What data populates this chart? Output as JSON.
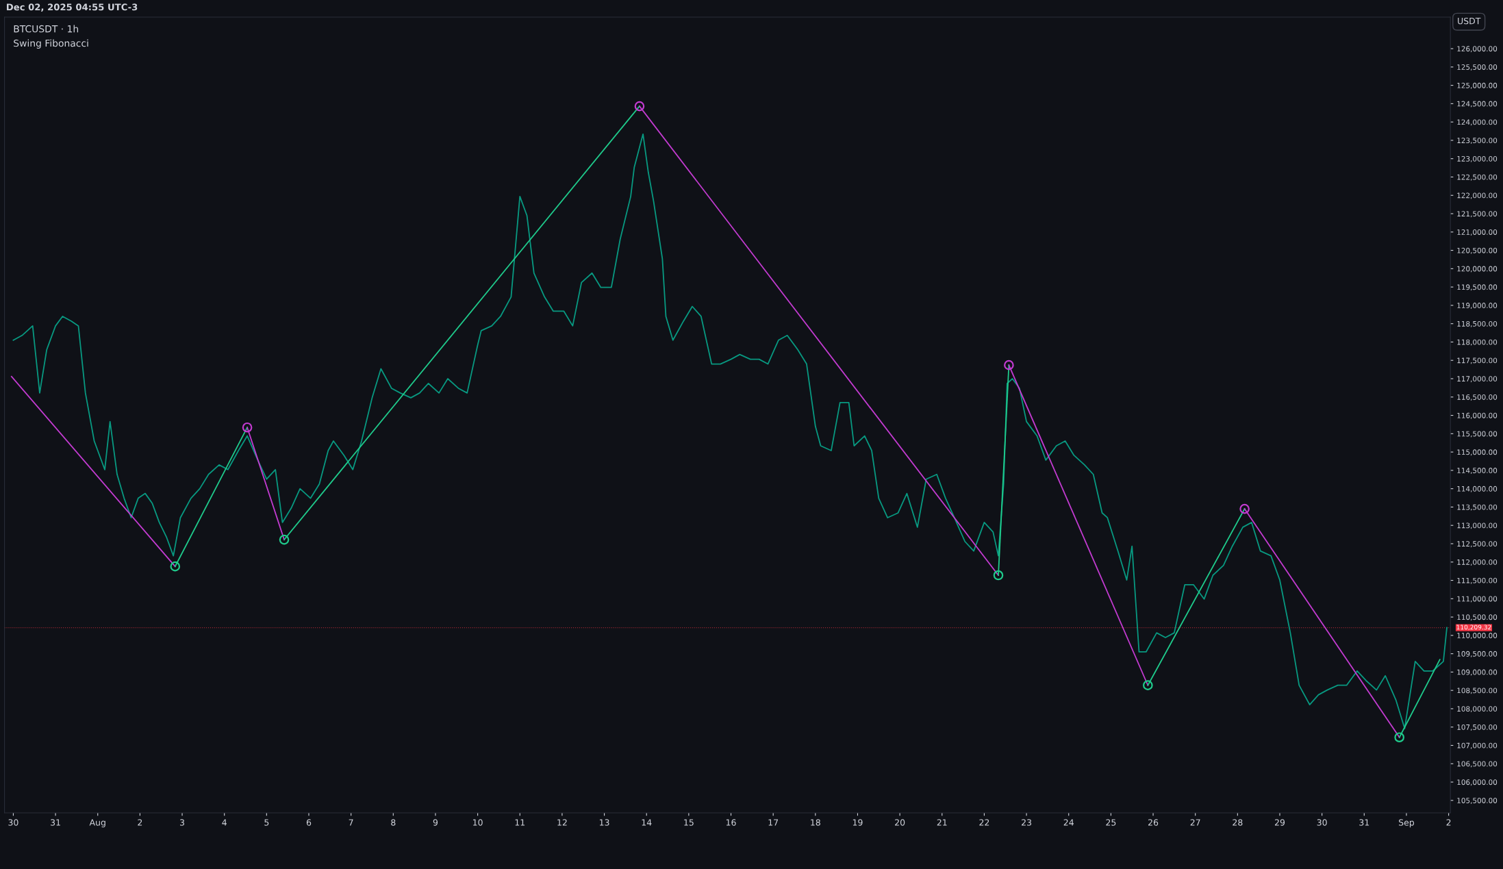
{
  "chart_data": {
    "type": "line",
    "title": "BTCUSDT · 1h",
    "subtitle": "Swing Fibonacci",
    "annotations": [
      "Dec 02, 2025 04:55 UTC-3",
      "USDT"
    ],
    "marker": "none",
    "line_style": "solid",
    "grid": false,
    "xlim": [
      "2025-07-29T19:00",
      "2025-09-02T01:00"
    ],
    "xticks": [
      {
        "value": "2025-07-30",
        "label": "30"
      },
      {
        "value": "2025-07-31",
        "label": "31"
      },
      {
        "value": "2025-08-01",
        "label": "Aug"
      },
      {
        "value": "2025-08-02",
        "label": "2"
      },
      {
        "value": "2025-08-03",
        "label": "3"
      },
      {
        "value": "2025-08-04",
        "label": "4"
      },
      {
        "value": "2025-08-05",
        "label": "5"
      },
      {
        "value": "2025-08-06",
        "label": "6"
      },
      {
        "value": "2025-08-07",
        "label": "7"
      },
      {
        "value": "2025-08-08",
        "label": "8"
      },
      {
        "value": "2025-08-09",
        "label": "9"
      },
      {
        "value": "2025-08-10",
        "label": "10"
      },
      {
        "value": "2025-08-11",
        "label": "11"
      },
      {
        "value": "2025-08-12",
        "label": "12"
      },
      {
        "value": "2025-08-13",
        "label": "13"
      },
      {
        "value": "2025-08-14",
        "label": "14"
      },
      {
        "value": "2025-08-15",
        "label": "15"
      },
      {
        "value": "2025-08-16",
        "label": "16"
      },
      {
        "value": "2025-08-17",
        "label": "17"
      },
      {
        "value": "2025-08-18",
        "label": "18"
      },
      {
        "value": "2025-08-19",
        "label": "19"
      },
      {
        "value": "2025-08-20",
        "label": "20"
      },
      {
        "value": "2025-08-21",
        "label": "21"
      },
      {
        "value": "2025-08-22",
        "label": "22"
      },
      {
        "value": "2025-08-23",
        "label": "23"
      },
      {
        "value": "2025-08-24",
        "label": "24"
      },
      {
        "value": "2025-08-25",
        "label": "25"
      },
      {
        "value": "2025-08-26",
        "label": "26"
      },
      {
        "value": "2025-08-27",
        "label": "27"
      },
      {
        "value": "2025-08-28",
        "label": "28"
      },
      {
        "value": "2025-08-29",
        "label": "29"
      },
      {
        "value": "2025-08-30",
        "label": "30"
      },
      {
        "value": "2025-08-31",
        "label": "31"
      },
      {
        "value": "2025-09-01",
        "label": "Sep"
      },
      {
        "value": "2025-09-02",
        "label": "2"
      }
    ],
    "ylim": [
      105160,
      126860
    ],
    "yticks": [
      {
        "value": 105500,
        "label": "105,500.00"
      },
      {
        "value": 106000,
        "label": "106,000.00"
      },
      {
        "value": 106500,
        "label": "106,500.00"
      },
      {
        "value": 107000,
        "label": "107,000.00"
      },
      {
        "value": 107500,
        "label": "107,500.00"
      },
      {
        "value": 108000,
        "label": "108,000.00"
      },
      {
        "value": 108500,
        "label": "108,500.00"
      },
      {
        "value": 109000,
        "label": "109,000.00"
      },
      {
        "value": 109500,
        "label": "109,500.00"
      },
      {
        "value": 110000,
        "label": "110,000.00"
      },
      {
        "value": 110500,
        "label": "110,500.00"
      },
      {
        "value": 111000,
        "label": "111,000.00"
      },
      {
        "value": 111500,
        "label": "111,500.00"
      },
      {
        "value": 112000,
        "label": "112,000.00"
      },
      {
        "value": 112500,
        "label": "112,500.00"
      },
      {
        "value": 113000,
        "label": "113,000.00"
      },
      {
        "value": 113500,
        "label": "113,500.00"
      },
      {
        "value": 114000,
        "label": "114,000.00"
      },
      {
        "value": 114500,
        "label": "114,500.00"
      },
      {
        "value": 115000,
        "label": "115,000.00"
      },
      {
        "value": 115500,
        "label": "115,500.00"
      },
      {
        "value": 116000,
        "label": "116,000.00"
      },
      {
        "value": 116500,
        "label": "116,500.00"
      },
      {
        "value": 117000,
        "label": "117,000.00"
      },
      {
        "value": 117500,
        "label": "117,500.00"
      },
      {
        "value": 118000,
        "label": "118,000.00"
      },
      {
        "value": 118500,
        "label": "118,500.00"
      },
      {
        "value": 119000,
        "label": "119,000.00"
      },
      {
        "value": 119500,
        "label": "119,500.00"
      },
      {
        "value": 120000,
        "label": "120,000.00"
      },
      {
        "value": 120500,
        "label": "120,500.00"
      },
      {
        "value": 121000,
        "label": "121,000.00"
      },
      {
        "value": 121500,
        "label": "121,500.00"
      },
      {
        "value": 122000,
        "label": "122,000.00"
      },
      {
        "value": 122500,
        "label": "122,500.00"
      },
      {
        "value": 123000,
        "label": "123,000.00"
      },
      {
        "value": 123500,
        "label": "123,500.00"
      },
      {
        "value": 124000,
        "label": "124,000.00"
      },
      {
        "value": 124500,
        "label": "124,500.00"
      },
      {
        "value": 125000,
        "label": "125,000.00"
      },
      {
        "value": 125500,
        "label": "125,500.00"
      },
      {
        "value": 126000,
        "label": "126,000.00"
      }
    ],
    "ref_lines": [
      {
        "axis": "y",
        "value": 110209.32,
        "label": "110,209.32",
        "color": "#f23645",
        "line_style": "dotted"
      }
    ],
    "series": [
      {
        "color": "#089981",
        "x": [
          "2025-07-30T00:00",
          "2025-07-30T05:00",
          "2025-07-30T11:00",
          "2025-07-30T15:00",
          "2025-07-30T19:00",
          "2025-07-31T00:00",
          "2025-07-31T04:00",
          "2025-07-31T09:00",
          "2025-07-31T13:00",
          "2025-07-31T17:00",
          "2025-07-31T22:00",
          "2025-08-01T04:00",
          "2025-08-01T07:00",
          "2025-08-01T11:00",
          "2025-08-01T15:00",
          "2025-08-01T19:00",
          "2025-08-01T23:00",
          "2025-08-02T03:00",
          "2025-08-02T07:00",
          "2025-08-02T11:00",
          "2025-08-02T15:00",
          "2025-08-02T19:00",
          "2025-08-02T23:00",
          "2025-08-03T05:00",
          "2025-08-03T10:00",
          "2025-08-03T15:00",
          "2025-08-03T21:00",
          "2025-08-04T02:00",
          "2025-08-04T08:00",
          "2025-08-04T13:00",
          "2025-08-04T19:00",
          "2025-08-05T00:00",
          "2025-08-05T05:00",
          "2025-08-05T09:00",
          "2025-08-05T14:00",
          "2025-08-05T19:00",
          "2025-08-06T01:00",
          "2025-08-06T06:00",
          "2025-08-06T11:00",
          "2025-08-06T14:00",
          "2025-08-06T20:00",
          "2025-08-07T01:00",
          "2025-08-07T06:00",
          "2025-08-07T12:00",
          "2025-08-07T17:00",
          "2025-08-07T23:00",
          "2025-08-08T04:00",
          "2025-08-08T10:00",
          "2025-08-08T15:00",
          "2025-08-08T20:00",
          "2025-08-09T02:00",
          "2025-08-09T07:00",
          "2025-08-09T13:00",
          "2025-08-09T18:00",
          "2025-08-10T00:00",
          "2025-08-10T02:00",
          "2025-08-10T08:00",
          "2025-08-10T13:00",
          "2025-08-10T19:00",
          "2025-08-11T00:00",
          "2025-08-11T04:00",
          "2025-08-11T08:00",
          "2025-08-11T14:00",
          "2025-08-11T19:00",
          "2025-08-12T01:00",
          "2025-08-12T06:00",
          "2025-08-12T11:00",
          "2025-08-12T17:00",
          "2025-08-12T22:00",
          "2025-08-13T04:00",
          "2025-08-13T09:00",
          "2025-08-13T15:00",
          "2025-08-13T17:00",
          "2025-08-13T22:00",
          "2025-08-14T01:00",
          "2025-08-14T04:00",
          "2025-08-14T09:00",
          "2025-08-14T11:00",
          "2025-08-14T15:00",
          "2025-08-14T21:00",
          "2025-08-15T02:00",
          "2025-08-15T07:00",
          "2025-08-15T13:00",
          "2025-08-15T18:00",
          "2025-08-16T00:00",
          "2025-08-16T05:00",
          "2025-08-16T11:00",
          "2025-08-16T16:00",
          "2025-08-16T21:00",
          "2025-08-17T03:00",
          "2025-08-17T08:00",
          "2025-08-17T14:00",
          "2025-08-17T19:00",
          "2025-08-18T00:00",
          "2025-08-18T03:00",
          "2025-08-18T09:00",
          "2025-08-18T14:00",
          "2025-08-18T19:00",
          "2025-08-18T22:00",
          "2025-08-19T04:00",
          "2025-08-19T08:00",
          "2025-08-19T12:00",
          "2025-08-19T17:00",
          "2025-08-19T23:00",
          "2025-08-20T04:00",
          "2025-08-20T10:00",
          "2025-08-20T15:00",
          "2025-08-20T21:00",
          "2025-08-21T02:00",
          "2025-08-21T07:00",
          "2025-08-21T13:00",
          "2025-08-21T18:00",
          "2025-08-22T00:00",
          "2025-08-22T05:00",
          "2025-08-22T08:00",
          "2025-08-22T11:00",
          "2025-08-22T13:00",
          "2025-08-22T16:00",
          "2025-08-22T20:00",
          "2025-08-23T00:00",
          "2025-08-23T06:00",
          "2025-08-23T11:00",
          "2025-08-23T17:00",
          "2025-08-23T22:00",
          "2025-08-24T03:00",
          "2025-08-24T09:00",
          "2025-08-24T14:00",
          "2025-08-24T19:00",
          "2025-08-24T22:00",
          "2025-08-25T04:00",
          "2025-08-25T09:00",
          "2025-08-25T12:00",
          "2025-08-25T16:00",
          "2025-08-25T20:00",
          "2025-08-26T02:00",
          "2025-08-26T07:00",
          "2025-08-26T12:00",
          "2025-08-26T18:00",
          "2025-08-26T23:00",
          "2025-08-27T05:00",
          "2025-08-27T10:00",
          "2025-08-27T16:00",
          "2025-08-27T21:00",
          "2025-08-28T03:00",
          "2025-08-28T08:00",
          "2025-08-28T13:00",
          "2025-08-28T19:00",
          "2025-08-29T00:00",
          "2025-08-29T06:00",
          "2025-08-29T11:00",
          "2025-08-29T17:00",
          "2025-08-29T22:00",
          "2025-08-30T03:00",
          "2025-08-30T09:00",
          "2025-08-30T14:00",
          "2025-08-30T20:00",
          "2025-08-31T01:00",
          "2025-08-31T07:00",
          "2025-08-31T12:00",
          "2025-08-31T18:00",
          "2025-08-31T23:00",
          "2025-09-01T05:00",
          "2025-09-01T10:00",
          "2025-09-01T15:00",
          "2025-09-01T21:00",
          "2025-09-01T23:00"
        ],
        "values": [
          118050,
          118180,
          118440,
          116610,
          117790,
          118440,
          118700,
          118570,
          118440,
          116610,
          115300,
          114520,
          115830,
          114390,
          113740,
          113210,
          113740,
          113870,
          113600,
          113080,
          112690,
          112170,
          113210,
          113740,
          114000,
          114390,
          114650,
          114520,
          115040,
          115440,
          114780,
          114260,
          114520,
          113080,
          113470,
          114000,
          113740,
          114130,
          115040,
          115300,
          114910,
          114520,
          115300,
          116480,
          117270,
          116740,
          116610,
          116480,
          116610,
          116870,
          116610,
          117000,
          116740,
          116610,
          117920,
          118310,
          118440,
          118700,
          119230,
          121970,
          121450,
          119880,
          119230,
          118840,
          118840,
          118440,
          119620,
          119880,
          119490,
          119490,
          120800,
          121970,
          122760,
          123670,
          122630,
          121840,
          120270,
          118700,
          118050,
          118570,
          118970,
          118700,
          117400,
          117400,
          117530,
          117660,
          117530,
          117530,
          117400,
          118050,
          118180,
          117790,
          117400,
          115700,
          115170,
          115040,
          116350,
          116350,
          115170,
          115440,
          115040,
          113740,
          113210,
          113340,
          113870,
          112950,
          114260,
          114390,
          113740,
          113210,
          112560,
          112300,
          113080,
          112820,
          112170,
          114130,
          116870,
          117000,
          116740,
          115830,
          115440,
          114780,
          115170,
          115300,
          114910,
          114650,
          114390,
          113340,
          113210,
          112300,
          111510,
          112430,
          109550,
          109550,
          110070,
          109940,
          110070,
          111380,
          111380,
          110990,
          111640,
          111910,
          112430,
          112950,
          113080,
          112300,
          112170,
          111510,
          110070,
          108640,
          108110,
          108380,
          108510,
          108640,
          108640,
          109030,
          108770,
          108510,
          108900,
          108240,
          107460,
          109290,
          109030,
          109030,
          109290,
          110210
        ]
      },
      {
        "type": "line",
        "color": "#c33bd1",
        "x": [
          "2025-07-29T23:00",
          "2025-08-02T20:00"
        ],
        "values": [
          117060,
          111880
        ]
      },
      {
        "type": "line",
        "color": "#1fcb8c",
        "x": [
          "2025-08-02T20:00",
          "2025-08-04T13:00"
        ],
        "values": [
          111880,
          115670
        ]
      },
      {
        "type": "line",
        "color": "#c33bd1",
        "x": [
          "2025-08-04T13:00",
          "2025-08-05T10:00"
        ],
        "values": [
          115670,
          112610
        ]
      },
      {
        "type": "line",
        "color": "#1fcb8c",
        "x": [
          "2025-08-05T10:00",
          "2025-08-13T20:00"
        ],
        "values": [
          112610,
          124430
        ]
      },
      {
        "type": "line",
        "color": "#c33bd1",
        "x": [
          "2025-08-13T20:00",
          "2025-08-22T08:00"
        ],
        "values": [
          124430,
          111640
        ]
      },
      {
        "type": "line",
        "color": "#1fcb8c",
        "x": [
          "2025-08-22T08:00",
          "2025-08-22T14:00"
        ],
        "values": [
          111640,
          117370
        ]
      },
      {
        "type": "line",
        "color": "#c33bd1",
        "x": [
          "2025-08-22T14:00",
          "2025-08-25T21:00"
        ],
        "values": [
          117370,
          108640
        ]
      },
      {
        "type": "line",
        "color": "#1fcb8c",
        "x": [
          "2025-08-25T21:00",
          "2025-08-28T04:00"
        ],
        "values": [
          108640,
          113450
        ]
      },
      {
        "type": "line",
        "color": "#c33bd1",
        "x": [
          "2025-08-28T04:00",
          "2025-08-31T20:00"
        ],
        "values": [
          113450,
          107220
        ]
      },
      {
        "type": "line",
        "color": "#1fcb8c",
        "x": [
          "2025-08-31T20:00",
          "2025-09-01T19:00"
        ],
        "values": [
          107220,
          109340
        ]
      },
      {
        "type": "scatter",
        "marker": "circle",
        "color": "#c33bd1",
        "x": [
          "2025-08-04T13:00",
          "2025-08-13T20:00",
          "2025-08-22T14:00",
          "2025-08-28T04:00"
        ],
        "values": [
          115670,
          124430,
          117370,
          113450
        ]
      },
      {
        "type": "scatter",
        "marker": "circle",
        "color": "#1fcb8c",
        "x": [
          "2025-08-02T20:00",
          "2025-08-05T10:00",
          "2025-08-22T08:00",
          "2025-08-25T21:00",
          "2025-08-31T20:00"
        ],
        "values": [
          111880,
          112610,
          111640,
          108640,
          107220
        ]
      }
    ]
  }
}
